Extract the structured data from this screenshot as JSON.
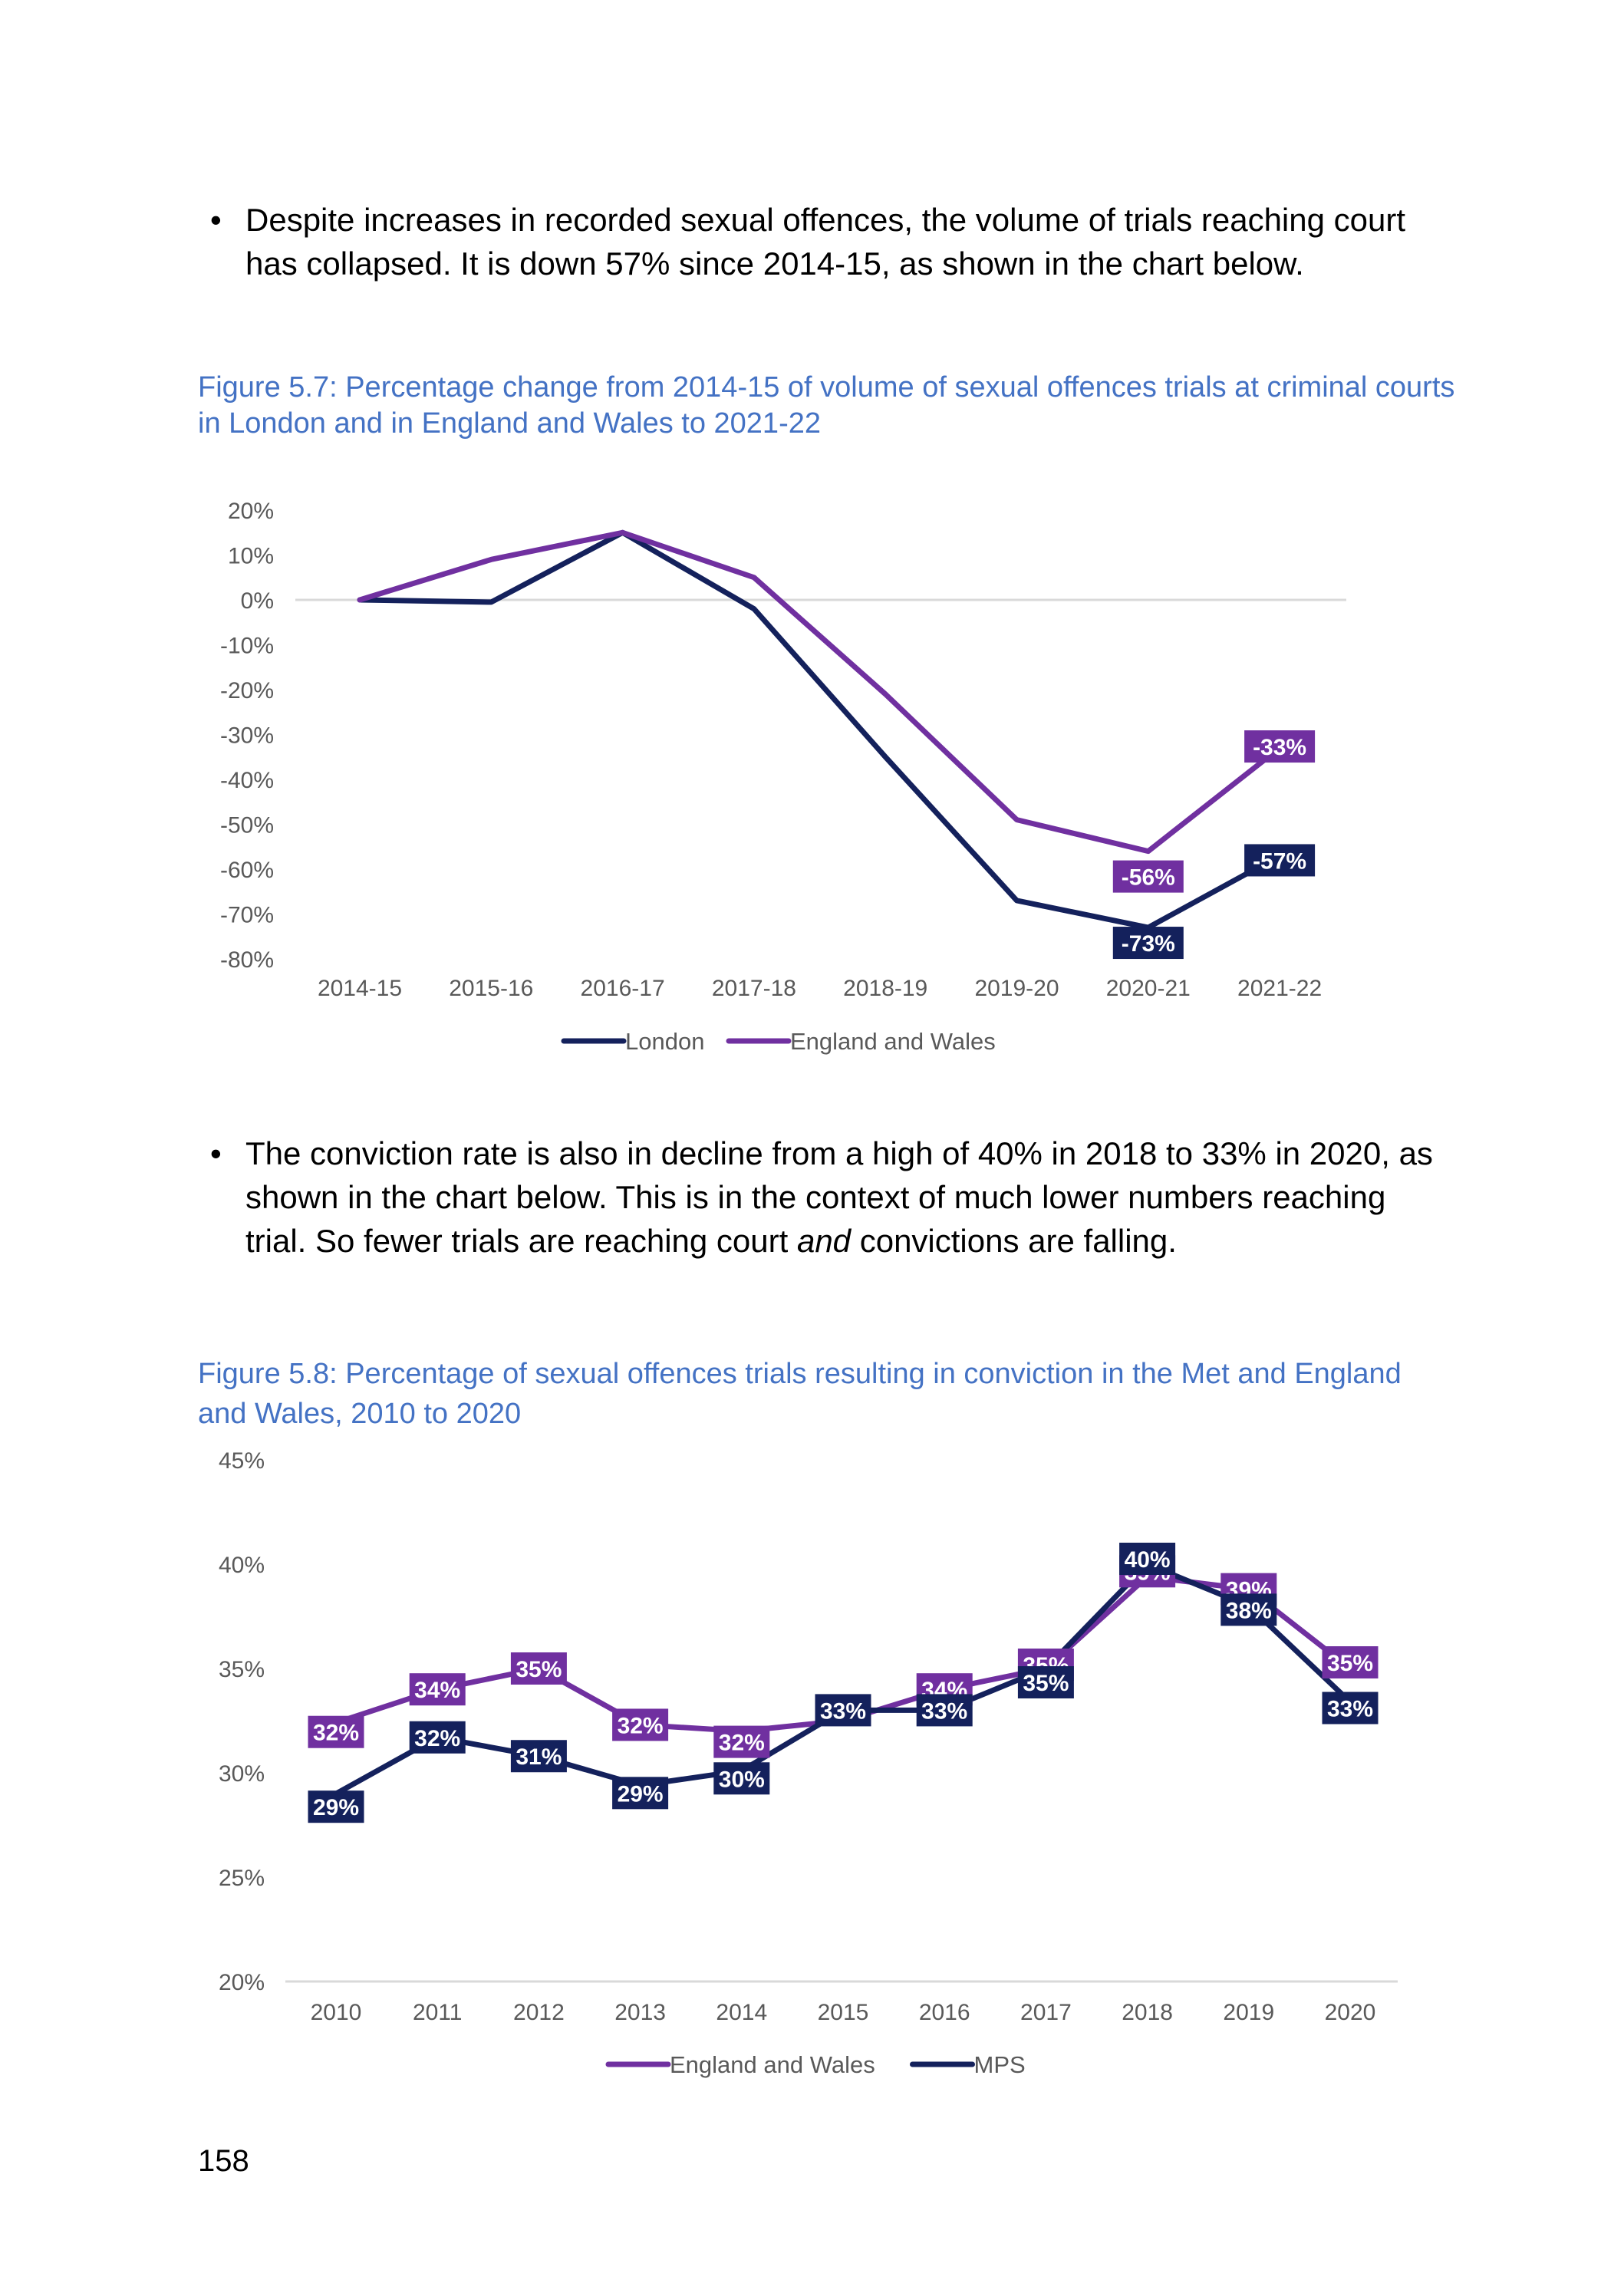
{
  "bullets": [
    "Despite increases in recorded sexual offences, the volume of trials reaching court has collapsed. It is down 57% since 2014-15, as shown in the chart below.",
    {
      "before": "The conviction rate is also in decline from a high of 40% in 2018 to 33% in 2020, as shown in the chart below. This is in the context of much lower numbers reaching trial. So fewer trials are reaching court ",
      "emphasis": "and",
      "after": " convictions are falling."
    }
  ],
  "figures": [
    {
      "caption": "Figure 5.7: Percentage change from 2014-15 of volume of sexual offences trials at criminal courts in London and in England and Wales to 2021-22"
    },
    {
      "caption": "Figure 5.8: Percentage of sexual offences trials resulting in conviction in the Met and England and Wales, 2010 to 2020"
    }
  ],
  "page_number": "158",
  "colors": {
    "navy": "#14215c",
    "purple": "#7030a0",
    "caption_blue": "#4472c4",
    "axis_text": "#595959",
    "gridline": "#d9d9d9"
  },
  "chart_data": [
    {
      "type": "line",
      "title": "",
      "categories": [
        "2014-15",
        "2015-16",
        "2016-17",
        "2017-18",
        "2018-19",
        "2019-20",
        "2020-21",
        "2021-22"
      ],
      "ylim": [
        -80,
        20
      ],
      "yticks": [
        "20%",
        "10%",
        "0%",
        "-10%",
        "-20%",
        "-30%",
        "-40%",
        "-50%",
        "-60%",
        "-70%",
        "-80%"
      ],
      "series": [
        {
          "name": "London",
          "color": "#14215c",
          "values": [
            0,
            -0.5,
            15,
            -2,
            -35,
            -67,
            -73,
            -57
          ],
          "labels": [
            null,
            null,
            null,
            null,
            null,
            null,
            "-73%",
            "-57%"
          ]
        },
        {
          "name": "England and Wales",
          "color": "#7030a0",
          "values": [
            0,
            9,
            15,
            5,
            -21,
            -49,
            -56,
            -33
          ],
          "labels": [
            null,
            null,
            null,
            null,
            null,
            null,
            "-56%",
            "-33%"
          ]
        }
      ],
      "legend_order": [
        "London",
        "England and Wales"
      ],
      "legend": "bottom",
      "grid": false
    },
    {
      "type": "line",
      "title": "",
      "categories": [
        "2010",
        "2011",
        "2012",
        "2013",
        "2014",
        "2015",
        "2016",
        "2017",
        "2018",
        "2019",
        "2020"
      ],
      "ylim": [
        20,
        45
      ],
      "yticks": [
        "45%",
        "40%",
        "35%",
        "30%",
        "25%",
        "20%"
      ],
      "series": [
        {
          "name": "England and Wales",
          "color": "#7030a0",
          "values": [
            32.4,
            34.0,
            35.0,
            32.3,
            32.0,
            32.5,
            34.0,
            35.0,
            39.4,
            38.8,
            35.0
          ],
          "labels": [
            "32%",
            "34%",
            "35%",
            "32%",
            "32%",
            "",
            "34%",
            "35%",
            "39%",
            "39%",
            "35%"
          ]
        },
        {
          "name": "MPS",
          "color": "#14215c",
          "values": [
            29.0,
            31.7,
            30.8,
            29.4,
            30.1,
            33.0,
            33.0,
            35.0,
            40.0,
            38.0,
            33.4
          ],
          "labels": [
            "29%",
            "32%",
            "31%",
            "29%",
            "30%",
            "33%",
            "33%",
            "35%",
            "40%",
            "38%",
            "33%"
          ]
        }
      ],
      "legend_order": [
        "England and Wales",
        "MPS"
      ],
      "legend": "bottom",
      "grid": false
    }
  ]
}
